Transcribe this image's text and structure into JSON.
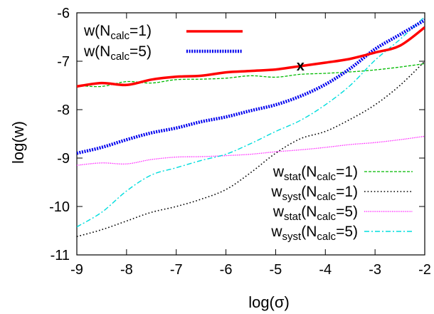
{
  "chart_data": {
    "type": "line",
    "xlabel": "log(σ)",
    "ylabel": "log(w)",
    "xlim": [
      -9,
      -2
    ],
    "ylim": [
      -11,
      -6
    ],
    "x_ticks": [
      -9,
      -8,
      -7,
      -6,
      -5,
      -4,
      -3,
      -2
    ],
    "y_ticks": [
      -11,
      -10,
      -9,
      -8,
      -7,
      -6
    ],
    "grid": false,
    "legend_placement": [
      "top-left",
      "bottom-right"
    ],
    "series": [
      {
        "name": "w(Ncalc=1)",
        "legend": {
          "base": "w(N",
          "sub": "calc",
          "suffix": "=1)"
        },
        "color": "#ff0000",
        "style": "solid-thick",
        "x": [
          -9.0,
          -8.5,
          -8.0,
          -7.5,
          -7.0,
          -6.5,
          -6.0,
          -5.5,
          -5.0,
          -4.5,
          -4.0,
          -3.5,
          -3.0,
          -2.5,
          -2.0
        ],
        "y": [
          -7.52,
          -7.45,
          -7.49,
          -7.38,
          -7.32,
          -7.3,
          -7.23,
          -7.2,
          -7.17,
          -7.1,
          -7.03,
          -6.95,
          -6.82,
          -6.68,
          -6.3
        ]
      },
      {
        "name": "w(Ncalc=5)",
        "legend": {
          "base": "w(N",
          "sub": "calc",
          "suffix": "=5)"
        },
        "color": "#0000ee",
        "style": "dotted-thick",
        "x": [
          -9.0,
          -8.5,
          -8.0,
          -7.5,
          -7.0,
          -6.5,
          -6.0,
          -5.5,
          -5.0,
          -4.5,
          -4.0,
          -3.5,
          -3.0,
          -2.5,
          -2.0
        ],
        "y": [
          -8.9,
          -8.78,
          -8.62,
          -8.48,
          -8.38,
          -8.25,
          -8.15,
          -8.02,
          -7.9,
          -7.72,
          -7.48,
          -7.15,
          -6.75,
          -6.45,
          -6.15
        ]
      },
      {
        "name": "wstat(Ncalc=1)",
        "legend": {
          "base": "w",
          "sub": "stat",
          "mid": "(N",
          "sub2": "calc",
          "suffix": "=1)"
        },
        "color": "#00bb00",
        "style": "dashed",
        "x": [
          -9.0,
          -8.5,
          -8.0,
          -7.5,
          -7.0,
          -6.5,
          -6.0,
          -5.5,
          -5.0,
          -4.5,
          -4.0,
          -3.5,
          -3.0,
          -2.5,
          -2.0
        ],
        "y": [
          -7.5,
          -7.52,
          -7.42,
          -7.45,
          -7.38,
          -7.37,
          -7.35,
          -7.3,
          -7.33,
          -7.27,
          -7.25,
          -7.22,
          -7.18,
          -7.12,
          -7.05
        ]
      },
      {
        "name": "wsyst(Ncalc=1)",
        "legend": {
          "base": "w",
          "sub": "syst",
          "mid": "(N",
          "sub2": "calc",
          "suffix": "=1)"
        },
        "color": "#000000",
        "style": "dotted",
        "x": [
          -9.0,
          -8.5,
          -8.0,
          -7.5,
          -7.0,
          -6.5,
          -6.0,
          -5.5,
          -5.0,
          -4.5,
          -4.0,
          -3.5,
          -3.0,
          -2.5,
          -2.0
        ],
        "y": [
          -10.62,
          -10.48,
          -10.3,
          -10.12,
          -10.0,
          -9.85,
          -9.65,
          -9.3,
          -8.9,
          -8.6,
          -8.45,
          -8.2,
          -7.9,
          -7.5,
          -7.0
        ]
      },
      {
        "name": "wstat(Ncalc=5)",
        "legend": {
          "base": "w",
          "sub": "stat",
          "mid": "(N",
          "sub2": "calc",
          "suffix": "=5)"
        },
        "color": "#ff00ff",
        "style": "dotted-fine",
        "x": [
          -9.0,
          -8.5,
          -8.0,
          -7.5,
          -7.0,
          -6.5,
          -6.0,
          -5.5,
          -5.0,
          -4.5,
          -4.0,
          -3.5,
          -3.0,
          -2.5,
          -2.0
        ],
        "y": [
          -9.15,
          -9.1,
          -9.12,
          -9.03,
          -8.98,
          -8.97,
          -8.95,
          -8.92,
          -8.87,
          -8.83,
          -8.78,
          -8.72,
          -8.68,
          -8.62,
          -8.55
        ]
      },
      {
        "name": "wsyst(Ncalc=5)",
        "legend": {
          "base": "w",
          "sub": "syst",
          "mid": "(N",
          "sub2": "calc",
          "suffix": "=5)"
        },
        "color": "#00dddd",
        "style": "dashdot",
        "x": [
          -9.0,
          -8.5,
          -8.0,
          -7.5,
          -7.0,
          -6.5,
          -6.0,
          -5.5,
          -5.0,
          -4.5,
          -4.0,
          -3.5,
          -3.0,
          -2.5,
          -2.0
        ],
        "y": [
          -10.42,
          -10.12,
          -9.68,
          -9.35,
          -9.2,
          -9.05,
          -8.92,
          -8.7,
          -8.45,
          -8.22,
          -7.9,
          -7.5,
          -6.98,
          -6.55,
          -6.08
        ]
      }
    ],
    "annotations": [
      {
        "text": "x",
        "x": -4.5,
        "y": -7.1
      }
    ]
  }
}
